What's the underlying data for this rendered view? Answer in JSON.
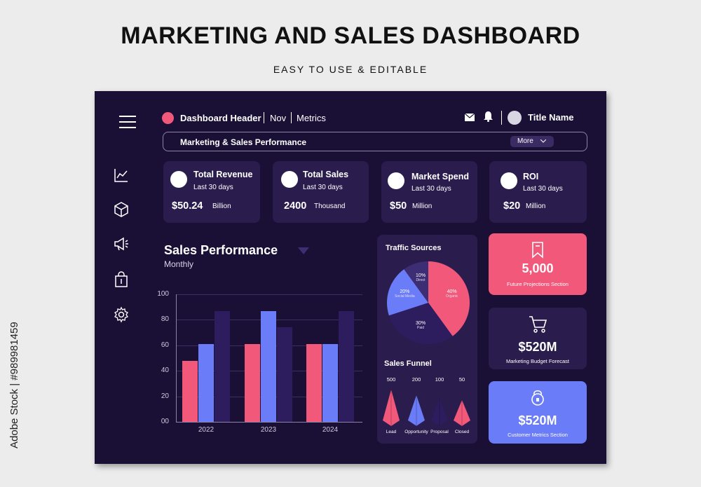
{
  "page": {
    "title": "MARKETING AND SALES DASHBOARD",
    "subtitle": "EASY TO USE & EDITABLE",
    "watermark": "Adobe Stock | #989981459"
  },
  "colors": {
    "pink": "#f2587a",
    "blue": "#6a7cf7",
    "purple": "#2e1d5e",
    "panel": "#2a1d4e",
    "bg": "#1a1035"
  },
  "topbar": {
    "header": "Dashboard Header",
    "month": "Nov",
    "section": "Metrics",
    "user_name": "Title Name",
    "icons": [
      "menu-icon",
      "mail-icon",
      "bell-icon",
      "avatar"
    ]
  },
  "search": {
    "label": "Marketing & Sales Performance",
    "more_label": "More"
  },
  "sidebar": {
    "icons": [
      "line-chart-icon",
      "cube-icon",
      "megaphone-icon",
      "shopping-bag-icon",
      "gear-icon"
    ]
  },
  "kpis": [
    {
      "title": "Total Revenue",
      "period": "Last 30 days",
      "value": "$50.24",
      "unit": "Billion",
      "icon": "revenue-icon"
    },
    {
      "title": "Total Sales",
      "period": "Last 30 days",
      "value": "2400",
      "unit": "Thousand",
      "icon": "sales-bag-icon"
    },
    {
      "title": "Market Spend",
      "period": "Last 30 days",
      "value": "$50",
      "unit": "Million",
      "icon": "spend-icon"
    },
    {
      "title": "ROI",
      "period": "Last 30 days",
      "value": "$20",
      "unit": "Million",
      "icon": "roi-icon"
    }
  ],
  "sales_performance": {
    "title": "Sales Performance",
    "subtitle": "Monthly"
  },
  "chart_data": [
    {
      "type": "bar",
      "categories": [
        "2022",
        "2023",
        "2024"
      ],
      "series": [
        {
          "values": [
            48,
            61,
            61
          ],
          "color": "#f2587a"
        },
        {
          "values": [
            61,
            87,
            61
          ],
          "color": "#6a7cf7"
        },
        {
          "values": [
            87,
            74,
            87
          ],
          "color": "#2e1d5e"
        }
      ],
      "yticks": [
        "00",
        "20",
        "40",
        "60",
        "80",
        "100"
      ],
      "ylim": [
        0,
        100
      ],
      "grid": true
    },
    {
      "type": "pie",
      "title": "Traffic Sources",
      "slices": [
        {
          "label": "Organic",
          "value": 40,
          "text": "40%",
          "color": "#f2587a"
        },
        {
          "label": "Paid",
          "value": 30,
          "text": "30%",
          "color": "#2e1d5e"
        },
        {
          "label": "Social Media",
          "value": 20,
          "text": "20%",
          "color": "#6a7cf7"
        },
        {
          "label": "Direct",
          "value": 10,
          "text": "10%",
          "color": "#3d2d75"
        }
      ]
    },
    {
      "type": "bar",
      "title": "Sales Funnel",
      "categories": [
        "Lead",
        "Opportunity",
        "Proposal",
        "Closed"
      ],
      "values": [
        500,
        200,
        100,
        50
      ],
      "labels": [
        "500",
        "200",
        "100",
        "50"
      ],
      "colors": [
        "#f2587a",
        "#6a7cf7",
        "#2e1d5e",
        "#f2587a"
      ]
    }
  ],
  "side_cards": [
    {
      "value": "5,000",
      "label": "Future Projections Section",
      "icon": "bookmark-icon",
      "color": "#f2587a"
    },
    {
      "value": "$520M",
      "label": "Marketing Budget Forecast",
      "icon": "cart-icon",
      "color": "#2a1d4e"
    },
    {
      "value": "$520M",
      "label": "Customer Metrics Section",
      "icon": "kettlebell-icon",
      "color": "#6a7cf7"
    }
  ]
}
